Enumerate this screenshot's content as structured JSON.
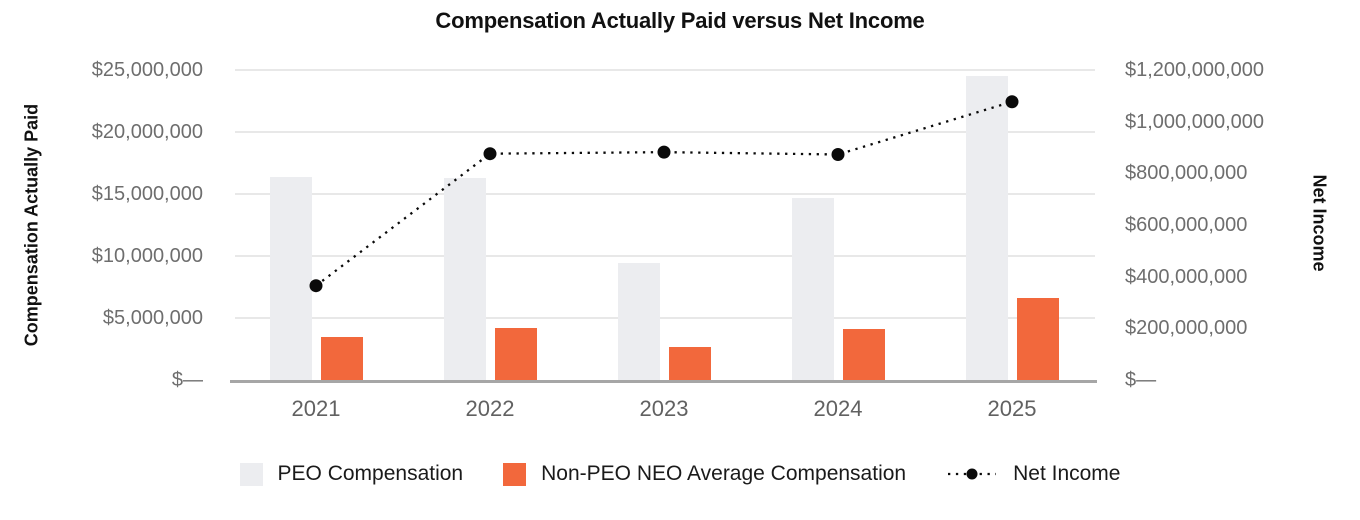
{
  "colors": {
    "peo_bar": "#ECEDF0",
    "non_peo_bar": "#F2683C",
    "net_income_line": "#0A0A0A",
    "gridline": "#E8E8E8",
    "baseline": "#A6A6A6",
    "tick_text": "#6E6E6E",
    "x_label_text": "#616161",
    "title_text": "#111111"
  },
  "chart_data": {
    "type": "bar+line",
    "title": "Compensation Actually Paid versus Net Income",
    "categories": [
      "2021",
      "2022",
      "2023",
      "2024",
      "2025"
    ],
    "series": [
      {
        "name": "PEO Compensation",
        "type": "bar",
        "axis": "left",
        "color": "#ECEDF0",
        "values": [
          16400000,
          16300000,
          9400000,
          14700000,
          24500000
        ]
      },
      {
        "name": "Non-PEO NEO Average Compensation",
        "type": "bar",
        "axis": "left",
        "color": "#F2683C",
        "values": [
          3500000,
          4200000,
          2700000,
          4100000,
          6600000
        ]
      },
      {
        "name": "Net Income",
        "type": "line-dotted",
        "axis": "right",
        "color": "#0A0A0A",
        "values": [
          365000000,
          876000000,
          882000000,
          873000000,
          1077000000
        ]
      }
    ],
    "left_axis": {
      "title": "Compensation Actually Paid",
      "min": 0,
      "max": 25000000,
      "tick_labels": [
        "$25,000,000",
        "$20,000,000",
        "$15,000,000",
        "$10,000,000",
        "$5,000,000",
        "$—"
      ],
      "tick_values": [
        25000000,
        20000000,
        15000000,
        10000000,
        5000000,
        0
      ]
    },
    "right_axis": {
      "title": "Net Income",
      "min": 0,
      "max": 1200000000,
      "tick_labels": [
        "$1,200,000,000",
        "$1,000,000,000",
        "$800,000,000",
        "$600,000,000",
        "$400,000,000",
        "$200,000,000",
        "$—"
      ],
      "tick_values": [
        1200000000,
        1000000000,
        800000000,
        600000000,
        400000000,
        200000000,
        0
      ]
    },
    "grid": true,
    "legend_position": "bottom"
  }
}
